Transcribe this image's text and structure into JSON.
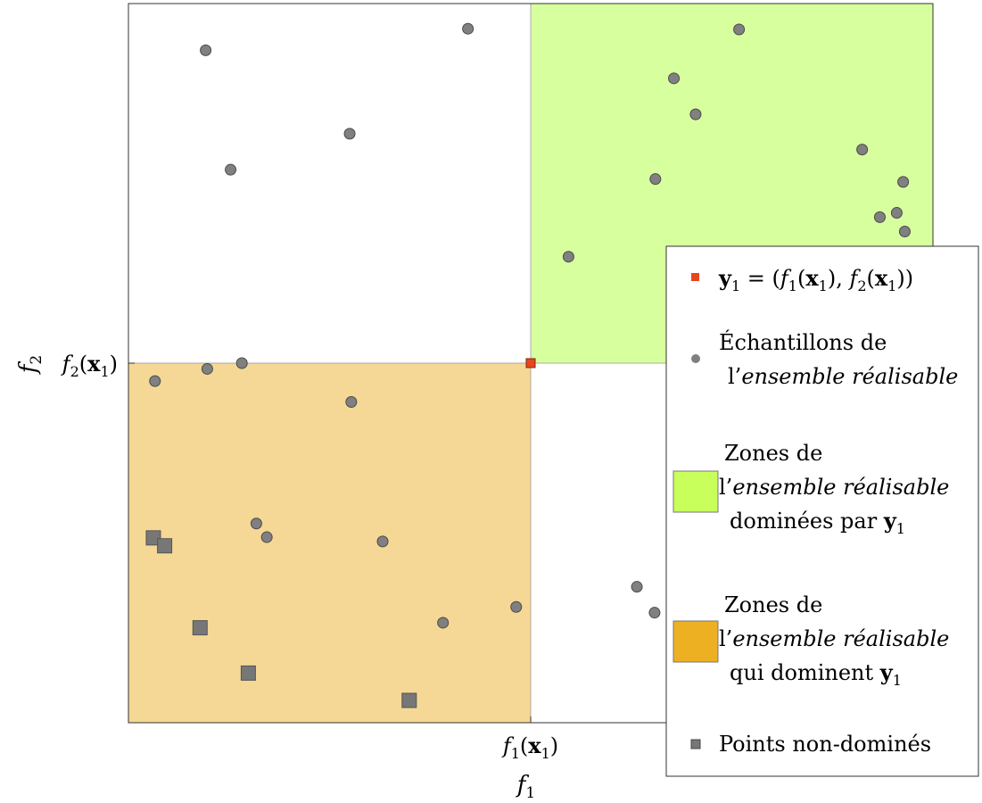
{
  "chart_data": {
    "type": "scatter",
    "xlabel": "f1",
    "ylabel": "f2",
    "xlim": [
      0,
      100
    ],
    "ylim": [
      0,
      100
    ],
    "grid": false,
    "legend_position": "right",
    "colors": {
      "sample": "#808080",
      "y1": "#e8461c",
      "dominated_zone": "#d8ff9e",
      "dominating_zone": "#f5d895",
      "nondominated": "#777777"
    },
    "reference_point": {
      "label": "y1 = (f1(x1), f2(x1))",
      "x": 50,
      "y": 50,
      "x_tick_label": "f1(x1)",
      "y_tick_label": "f2(x1)"
    },
    "zones": [
      {
        "name": "Zones de l'ensemble réalisable dominées par y1",
        "x": [
          50,
          100
        ],
        "y": [
          50,
          100
        ]
      },
      {
        "name": "Zones de l'ensemble réalisable qui dominent y1",
        "x": [
          0,
          50
        ],
        "y": [
          0,
          50
        ]
      }
    ],
    "series": [
      {
        "name": "Échantillons de l'ensemble réalisable",
        "marker": "circle",
        "points": [
          [
            9.6,
            93.5
          ],
          [
            42.2,
            96.5
          ],
          [
            27.5,
            81.9
          ],
          [
            12.7,
            76.9
          ],
          [
            75.9,
            96.4
          ],
          [
            67.8,
            89.6
          ],
          [
            70.5,
            84.6
          ],
          [
            65.5,
            75.6
          ],
          [
            91.2,
            79.7
          ],
          [
            96.3,
            75.2
          ],
          [
            95.5,
            70.9
          ],
          [
            93.4,
            70.3
          ],
          [
            96.5,
            68.3
          ],
          [
            54.7,
            64.8
          ],
          [
            3.3,
            47.5
          ],
          [
            9.8,
            49.2
          ],
          [
            14.1,
            50.0
          ],
          [
            27.7,
            44.6
          ],
          [
            15.9,
            27.7
          ],
          [
            17.2,
            25.8
          ],
          [
            31.6,
            25.2
          ],
          [
            48.2,
            16.1
          ],
          [
            39.1,
            13.9
          ],
          [
            63.2,
            18.9
          ],
          [
            65.4,
            15.3
          ]
        ]
      },
      {
        "name": "Points non-dominés",
        "marker": "square",
        "points": [
          [
            3.1,
            25.7
          ],
          [
            4.5,
            24.6
          ],
          [
            8.9,
            13.2
          ],
          [
            14.9,
            6.9
          ],
          [
            34.9,
            3.1
          ]
        ]
      }
    ],
    "legend": [
      {
        "type": "y1",
        "label": "y1 = (f1(x1), f2(x1))"
      },
      {
        "type": "sample",
        "label": "Échantillons de l'ensemble réalisable"
      },
      {
        "type": "dominated_zone",
        "label": "Zones de l'ensemble réalisable dominées par y1"
      },
      {
        "type": "dominating_zone",
        "label": "Zones de l'ensemble réalisable qui dominent y1"
      },
      {
        "type": "nondominated",
        "label": "Points non-dominés"
      }
    ]
  }
}
